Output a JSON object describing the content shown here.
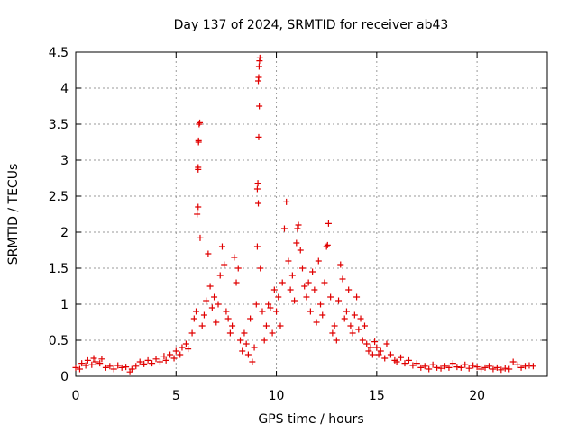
{
  "chart_data": {
    "type": "scatter",
    "title": "Day 137 of 2024, SRMTID for receiver ab43",
    "xlabel": "GPS time / hours",
    "ylabel": "SRMTID / TECUs",
    "xlim": [
      0,
      23.5
    ],
    "ylim": [
      0,
      4.5
    ],
    "xticks": [
      0,
      5,
      10,
      15,
      20
    ],
    "yticks": [
      0,
      0.5,
      1,
      1.5,
      2,
      2.5,
      3,
      3.5,
      4,
      4.5
    ],
    "xtick_labels": [
      "0",
      "5",
      "10",
      "15",
      "20"
    ],
    "ytick_labels": [
      "0",
      "0.5",
      "1",
      "1.5",
      "2",
      "2.5",
      "3",
      "3.5",
      "4",
      "4.5"
    ],
    "grid": true,
    "marker": "+",
    "marker_color": "#e00000",
    "series": [
      {
        "name": "SRMTID",
        "points": [
          [
            0.0,
            0.12
          ],
          [
            0.2,
            0.1
          ],
          [
            0.3,
            0.18
          ],
          [
            0.5,
            0.15
          ],
          [
            0.6,
            0.22
          ],
          [
            0.8,
            0.16
          ],
          [
            0.9,
            0.25
          ],
          [
            1.0,
            0.2
          ],
          [
            1.2,
            0.18
          ],
          [
            1.3,
            0.24
          ],
          [
            1.5,
            0.12
          ],
          [
            1.7,
            0.14
          ],
          [
            1.9,
            0.1
          ],
          [
            2.1,
            0.15
          ],
          [
            2.3,
            0.12
          ],
          [
            2.5,
            0.13
          ],
          [
            2.7,
            0.06
          ],
          [
            2.8,
            0.1
          ],
          [
            3.0,
            0.14
          ],
          [
            3.2,
            0.2
          ],
          [
            3.4,
            0.17
          ],
          [
            3.6,
            0.22
          ],
          [
            3.8,
            0.18
          ],
          [
            4.0,
            0.24
          ],
          [
            4.2,
            0.2
          ],
          [
            4.4,
            0.28
          ],
          [
            4.5,
            0.22
          ],
          [
            4.7,
            0.3
          ],
          [
            4.9,
            0.25
          ],
          [
            5.0,
            0.35
          ],
          [
            5.2,
            0.3
          ],
          [
            5.3,
            0.4
          ],
          [
            5.5,
            0.45
          ],
          [
            5.6,
            0.38
          ],
          [
            5.8,
            0.6
          ],
          [
            5.9,
            0.8
          ],
          [
            6.0,
            0.9
          ],
          [
            6.05,
            2.25
          ],
          [
            6.1,
            2.35
          ],
          [
            6.1,
            2.87
          ],
          [
            6.1,
            2.9
          ],
          [
            6.12,
            3.25
          ],
          [
            6.12,
            3.27
          ],
          [
            6.15,
            3.5
          ],
          [
            6.18,
            3.52
          ],
          [
            6.2,
            1.92
          ],
          [
            6.3,
            0.7
          ],
          [
            6.4,
            0.85
          ],
          [
            6.5,
            1.05
          ],
          [
            6.6,
            1.7
          ],
          [
            6.7,
            1.25
          ],
          [
            6.8,
            0.95
          ],
          [
            6.9,
            1.1
          ],
          [
            7.0,
            0.75
          ],
          [
            7.1,
            1.0
          ],
          [
            7.2,
            1.4
          ],
          [
            7.3,
            1.8
          ],
          [
            7.4,
            1.55
          ],
          [
            7.5,
            0.9
          ],
          [
            7.6,
            0.8
          ],
          [
            7.7,
            0.6
          ],
          [
            7.8,
            0.7
          ],
          [
            7.9,
            1.65
          ],
          [
            8.0,
            1.3
          ],
          [
            8.1,
            1.5
          ],
          [
            8.2,
            0.5
          ],
          [
            8.3,
            0.35
          ],
          [
            8.4,
            0.6
          ],
          [
            8.5,
            0.45
          ],
          [
            8.6,
            0.3
          ],
          [
            8.7,
            0.8
          ],
          [
            8.8,
            0.2
          ],
          [
            8.9,
            0.4
          ],
          [
            9.0,
            1.0
          ],
          [
            9.05,
            1.8
          ],
          [
            9.05,
            2.6
          ],
          [
            9.08,
            2.68
          ],
          [
            9.1,
            2.4
          ],
          [
            9.12,
            3.32
          ],
          [
            9.15,
            3.75
          ],
          [
            9.1,
            4.1
          ],
          [
            9.12,
            4.15
          ],
          [
            9.14,
            4.3
          ],
          [
            9.16,
            4.38
          ],
          [
            9.18,
            4.42
          ],
          [
            9.2,
            1.5
          ],
          [
            9.3,
            0.9
          ],
          [
            9.4,
            0.5
          ],
          [
            9.5,
            0.7
          ],
          [
            9.6,
            1.0
          ],
          [
            9.7,
            0.95
          ],
          [
            9.8,
            0.6
          ],
          [
            9.9,
            1.2
          ],
          [
            10.0,
            0.9
          ],
          [
            10.1,
            1.1
          ],
          [
            10.2,
            0.7
          ],
          [
            10.3,
            1.3
          ],
          [
            10.4,
            2.05
          ],
          [
            10.5,
            2.42
          ],
          [
            10.6,
            1.6
          ],
          [
            10.7,
            1.2
          ],
          [
            10.8,
            1.4
          ],
          [
            10.9,
            1.05
          ],
          [
            11.0,
            1.85
          ],
          [
            11.05,
            2.05
          ],
          [
            11.1,
            2.1
          ],
          [
            11.2,
            1.75
          ],
          [
            11.3,
            1.5
          ],
          [
            11.4,
            1.25
          ],
          [
            11.5,
            1.1
          ],
          [
            11.6,
            1.3
          ],
          [
            11.7,
            0.9
          ],
          [
            11.8,
            1.45
          ],
          [
            11.9,
            1.2
          ],
          [
            12.0,
            0.75
          ],
          [
            12.1,
            1.6
          ],
          [
            12.2,
            1.0
          ],
          [
            12.3,
            0.85
          ],
          [
            12.4,
            1.3
          ],
          [
            12.5,
            1.8
          ],
          [
            12.55,
            1.82
          ],
          [
            12.6,
            2.12
          ],
          [
            12.7,
            1.1
          ],
          [
            12.8,
            0.6
          ],
          [
            12.9,
            0.7
          ],
          [
            13.0,
            0.5
          ],
          [
            13.1,
            1.05
          ],
          [
            13.2,
            1.55
          ],
          [
            13.3,
            1.35
          ],
          [
            13.4,
            0.8
          ],
          [
            13.5,
            0.9
          ],
          [
            13.6,
            1.2
          ],
          [
            13.7,
            0.7
          ],
          [
            13.8,
            0.6
          ],
          [
            13.9,
            0.85
          ],
          [
            14.0,
            1.1
          ],
          [
            14.1,
            0.65
          ],
          [
            14.2,
            0.8
          ],
          [
            14.3,
            0.5
          ],
          [
            14.4,
            0.7
          ],
          [
            14.5,
            0.45
          ],
          [
            14.6,
            0.35
          ],
          [
            14.7,
            0.4
          ],
          [
            14.8,
            0.3
          ],
          [
            14.9,
            0.48
          ],
          [
            15.0,
            0.4
          ],
          [
            15.1,
            0.3
          ],
          [
            15.2,
            0.35
          ],
          [
            15.4,
            0.25
          ],
          [
            15.5,
            0.45
          ],
          [
            15.7,
            0.3
          ],
          [
            15.9,
            0.22
          ],
          [
            16.0,
            0.2
          ],
          [
            16.2,
            0.26
          ],
          [
            16.4,
            0.18
          ],
          [
            16.6,
            0.22
          ],
          [
            16.8,
            0.15
          ],
          [
            17.0,
            0.18
          ],
          [
            17.2,
            0.12
          ],
          [
            17.4,
            0.14
          ],
          [
            17.6,
            0.1
          ],
          [
            17.8,
            0.16
          ],
          [
            18.0,
            0.12
          ],
          [
            18.2,
            0.11
          ],
          [
            18.4,
            0.14
          ],
          [
            18.6,
            0.12
          ],
          [
            18.8,
            0.18
          ],
          [
            19.0,
            0.13
          ],
          [
            19.2,
            0.12
          ],
          [
            19.4,
            0.16
          ],
          [
            19.6,
            0.11
          ],
          [
            19.8,
            0.15
          ],
          [
            20.0,
            0.13
          ],
          [
            20.2,
            0.1
          ],
          [
            20.4,
            0.12
          ],
          [
            20.6,
            0.14
          ],
          [
            20.8,
            0.1
          ],
          [
            21.0,
            0.12
          ],
          [
            21.2,
            0.09
          ],
          [
            21.4,
            0.11
          ],
          [
            21.6,
            0.1
          ],
          [
            21.8,
            0.2
          ],
          [
            22.0,
            0.16
          ],
          [
            22.2,
            0.12
          ],
          [
            22.4,
            0.14
          ],
          [
            22.6,
            0.15
          ],
          [
            22.8,
            0.14
          ]
        ]
      }
    ]
  }
}
